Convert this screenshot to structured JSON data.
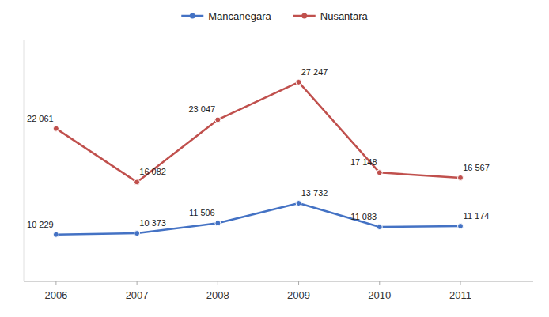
{
  "chart_data": {
    "type": "line",
    "x": [
      2006,
      2007,
      2008,
      2009,
      2010,
      2011
    ],
    "xlim": [
      2005.6,
      2011.9
    ],
    "xticks": [
      2006,
      2007,
      2008,
      2009,
      2010,
      2011
    ],
    "ylim": [
      5000,
      32000
    ],
    "tick_labels": "x",
    "grid": false,
    "legend": "top",
    "data_labels": true,
    "series": [
      {
        "name": "Mancanegara",
        "color": "#4472C4",
        "marker": "circle",
        "values": [
          10229,
          10373,
          11506,
          13732,
          11083,
          11174
        ],
        "value_labels": [
          "10 229",
          "10 373",
          "11 506",
          "13 732",
          "11 083",
          "11 174"
        ]
      },
      {
        "name": "Nusantara",
        "color": "#C0504D",
        "marker": "circle",
        "values": [
          22061,
          16082,
          23047,
          27247,
          17148,
          16567
        ],
        "value_labels": [
          "22 061",
          "16 082",
          "23 047",
          "27 247",
          "17 148",
          "16 567"
        ]
      }
    ]
  }
}
